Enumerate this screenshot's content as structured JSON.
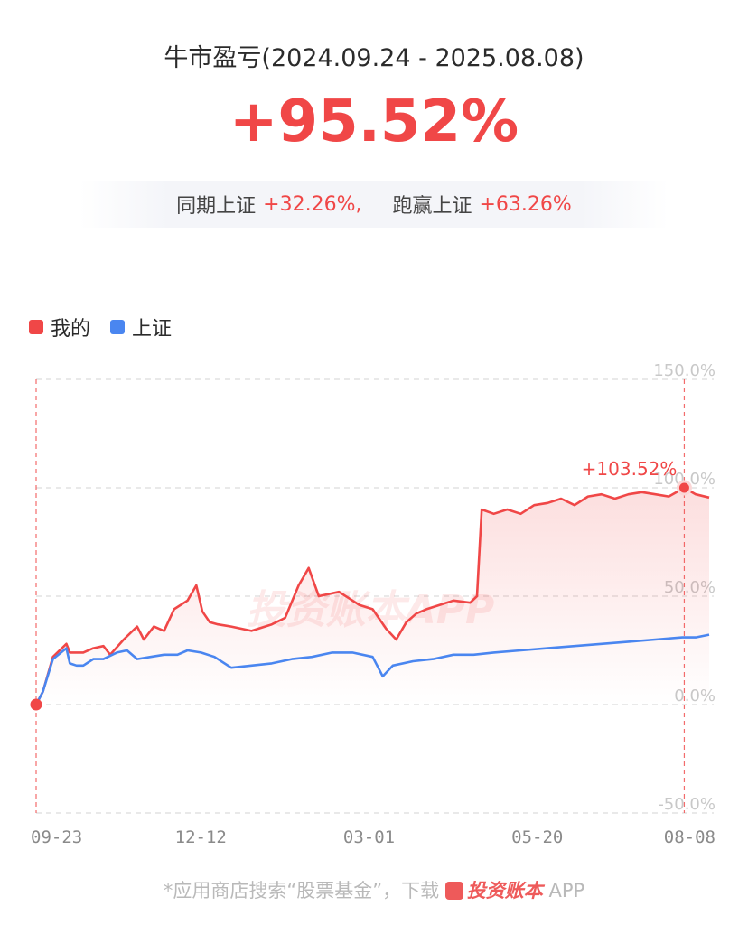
{
  "header": {
    "title": "牛市盈亏(2024.09.24 - 2025.08.08)",
    "profit": "+95.52%"
  },
  "compare": {
    "label1": "同期上证",
    "value1": "+32.26%,",
    "label2": "跑赢上证",
    "value2": "+63.26%"
  },
  "colors": {
    "accent": "#f04747",
    "index": "#4a86f0"
  },
  "legend": [
    {
      "name": "我的",
      "color": "#f04747"
    },
    {
      "name": "上证",
      "color": "#4a86f0"
    }
  ],
  "watermark": "投资账本APP",
  "footer": {
    "prefix": "*应用商店搜索“股票基金”，下载",
    "brand": "投资账本",
    "suffix": "APP"
  },
  "chart_data": {
    "type": "line",
    "x_ticks": [
      "09-23",
      "12-12",
      "03-01",
      "05-20",
      "08-08"
    ],
    "ylim": [
      -50,
      150
    ],
    "y_ticks": [
      "150.0%",
      "100.0%",
      "50.0%",
      "0.0%",
      "-50.0%"
    ],
    "y_tick_values": [
      150,
      100,
      50,
      0,
      -50
    ],
    "grid": true,
    "legend_position": "top-left",
    "annotation": {
      "text": "+103.52%",
      "x": 0.963,
      "y": 100
    },
    "series": [
      {
        "name": "我的",
        "color": "#f04747",
        "points": [
          [
            0.0,
            0
          ],
          [
            0.01,
            6
          ],
          [
            0.025,
            22
          ],
          [
            0.045,
            28
          ],
          [
            0.05,
            24
          ],
          [
            0.06,
            24
          ],
          [
            0.07,
            24
          ],
          [
            0.085,
            26
          ],
          [
            0.1,
            27
          ],
          [
            0.11,
            23
          ],
          [
            0.13,
            30
          ],
          [
            0.15,
            36
          ],
          [
            0.16,
            30
          ],
          [
            0.175,
            36
          ],
          [
            0.19,
            34
          ],
          [
            0.205,
            44
          ],
          [
            0.225,
            48
          ],
          [
            0.238,
            55
          ],
          [
            0.247,
            43
          ],
          [
            0.258,
            38
          ],
          [
            0.27,
            37
          ],
          [
            0.29,
            36
          ],
          [
            0.32,
            34
          ],
          [
            0.35,
            37
          ],
          [
            0.37,
            40
          ],
          [
            0.39,
            55
          ],
          [
            0.405,
            63
          ],
          [
            0.42,
            50
          ],
          [
            0.45,
            52
          ],
          [
            0.48,
            46
          ],
          [
            0.5,
            44
          ],
          [
            0.52,
            35
          ],
          [
            0.535,
            30
          ],
          [
            0.55,
            38
          ],
          [
            0.565,
            42
          ],
          [
            0.58,
            44
          ],
          [
            0.6,
            46
          ],
          [
            0.62,
            48
          ],
          [
            0.645,
            47
          ],
          [
            0.655,
            50
          ],
          [
            0.662,
            90
          ],
          [
            0.68,
            88
          ],
          [
            0.7,
            90
          ],
          [
            0.72,
            88
          ],
          [
            0.74,
            92
          ],
          [
            0.76,
            93
          ],
          [
            0.78,
            95
          ],
          [
            0.8,
            92
          ],
          [
            0.82,
            96
          ],
          [
            0.84,
            97
          ],
          [
            0.86,
            95
          ],
          [
            0.88,
            97
          ],
          [
            0.9,
            98
          ],
          [
            0.92,
            97
          ],
          [
            0.94,
            96
          ],
          [
            0.963,
            100
          ],
          [
            0.98,
            97
          ],
          [
            1.0,
            95.52
          ]
        ]
      },
      {
        "name": "上证",
        "color": "#4a86f0",
        "points": [
          [
            0.0,
            0
          ],
          [
            0.01,
            6
          ],
          [
            0.025,
            21
          ],
          [
            0.045,
            26
          ],
          [
            0.05,
            19
          ],
          [
            0.06,
            18
          ],
          [
            0.07,
            18
          ],
          [
            0.085,
            21
          ],
          [
            0.1,
            21
          ],
          [
            0.12,
            24
          ],
          [
            0.135,
            25
          ],
          [
            0.15,
            21
          ],
          [
            0.17,
            22
          ],
          [
            0.19,
            23
          ],
          [
            0.21,
            23
          ],
          [
            0.225,
            25
          ],
          [
            0.245,
            24
          ],
          [
            0.265,
            22
          ],
          [
            0.29,
            17
          ],
          [
            0.32,
            18
          ],
          [
            0.35,
            19
          ],
          [
            0.38,
            21
          ],
          [
            0.41,
            22
          ],
          [
            0.44,
            24
          ],
          [
            0.47,
            24
          ],
          [
            0.5,
            22
          ],
          [
            0.515,
            13
          ],
          [
            0.53,
            18
          ],
          [
            0.56,
            20
          ],
          [
            0.59,
            21
          ],
          [
            0.62,
            23
          ],
          [
            0.65,
            23
          ],
          [
            0.68,
            24
          ],
          [
            0.72,
            25
          ],
          [
            0.76,
            26
          ],
          [
            0.8,
            27
          ],
          [
            0.84,
            28
          ],
          [
            0.88,
            29
          ],
          [
            0.92,
            30
          ],
          [
            0.96,
            31
          ],
          [
            0.98,
            31
          ],
          [
            1.0,
            32.26
          ]
        ]
      }
    ]
  }
}
